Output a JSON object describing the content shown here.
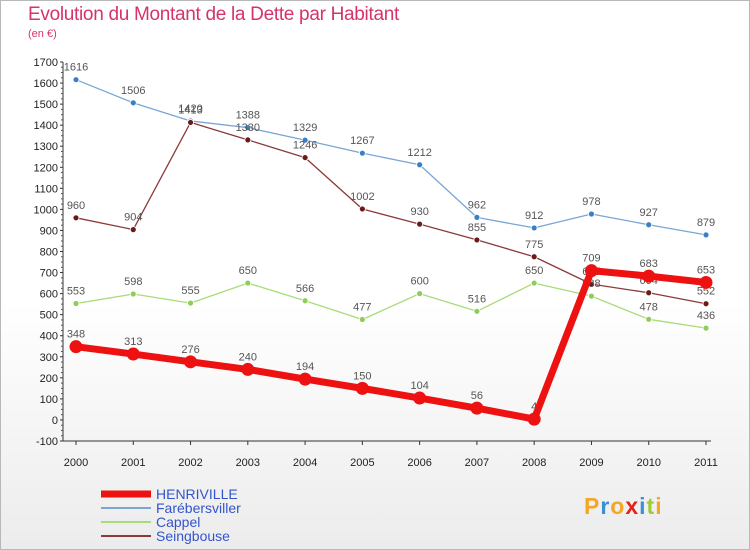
{
  "header": {
    "title": "Evolution du Montant de la Dette par Habitant",
    "subtitle": "(en €)"
  },
  "logo": {
    "letters": [
      "P",
      "r",
      "o",
      "x",
      "i",
      "t",
      "i"
    ],
    "colors": [
      "#f5a623",
      "#3b8fd6",
      "#f5a623",
      "#e2231a",
      "#3b8fd6",
      "#9acd32",
      "#f5a623"
    ]
  },
  "chart_data": {
    "type": "line",
    "title": "Evolution du Montant de la Dette par Habitant",
    "ylabel": "(en €)",
    "xlabel": "",
    "x": [
      "2000",
      "2001",
      "2002",
      "2003",
      "2004",
      "2005",
      "2006",
      "2007",
      "2008",
      "2009",
      "2010",
      "2011"
    ],
    "ylim": [
      -100,
      1700
    ],
    "yticks": [
      "-100",
      "0",
      "100",
      "200",
      "300",
      "400",
      "500",
      "600",
      "700",
      "800",
      "900",
      "1000",
      "1100",
      "1200",
      "1300",
      "1400",
      "1500",
      "1600",
      "1700"
    ],
    "grid": false,
    "legend_position": "bottom-left",
    "series": [
      {
        "name": "Farébersviller",
        "color": "#7aa6d4",
        "marker": "#3a7fc4",
        "values": [
          1616,
          1506,
          1420,
          1388,
          1329,
          1267,
          1212,
          962,
          912,
          978,
          927,
          879
        ],
        "labels": [
          "1616",
          "1506",
          "1420",
          "1388",
          "1329",
          "1267",
          "1212",
          "962",
          "912",
          "978",
          "927",
          "879"
        ]
      },
      {
        "name": "Seingbouse",
        "color": "#8b3a3a",
        "marker": "#6b1a1a",
        "values": [
          960,
          904,
          1413,
          1330,
          1246,
          1002,
          930,
          855,
          775,
          645,
          604,
          552
        ],
        "labels": [
          "960",
          "904",
          "1413",
          "1330",
          "1246",
          "1002",
          "930",
          "855",
          "775",
          "645",
          "604",
          "552"
        ]
      },
      {
        "name": "Cappel",
        "color": "#a8dc78",
        "marker": "#8fcc5a",
        "values": [
          553,
          598,
          555,
          650,
          566,
          477,
          600,
          516,
          650,
          588,
          478,
          436
        ],
        "labels": [
          "553",
          "598",
          "555",
          "650",
          "566",
          "477",
          "600",
          "516",
          "650",
          "588",
          "478",
          "436"
        ]
      },
      {
        "name": "HENRIVILLE",
        "color": "#ee1111",
        "marker": "#ee1111",
        "values": [
          348,
          313,
          276,
          240,
          194,
          150,
          104,
          56,
          4,
          709,
          683,
          653
        ],
        "labels": [
          "348",
          "313",
          "276",
          "240",
          "194",
          "150",
          "104",
          "56",
          "4",
          "709",
          "683",
          "653"
        ]
      }
    ],
    "legend": [
      "HENRIVILLE",
      "Farébersviller",
      "Cappel",
      "Seingbouse"
    ],
    "legend_colors": [
      "#ee1111",
      "#7aa6d4",
      "#a8dc78",
      "#8b3a3a"
    ],
    "legend_text_colors": [
      "#3355cc",
      "#3355cc",
      "#3355cc",
      "#3355cc"
    ]
  }
}
